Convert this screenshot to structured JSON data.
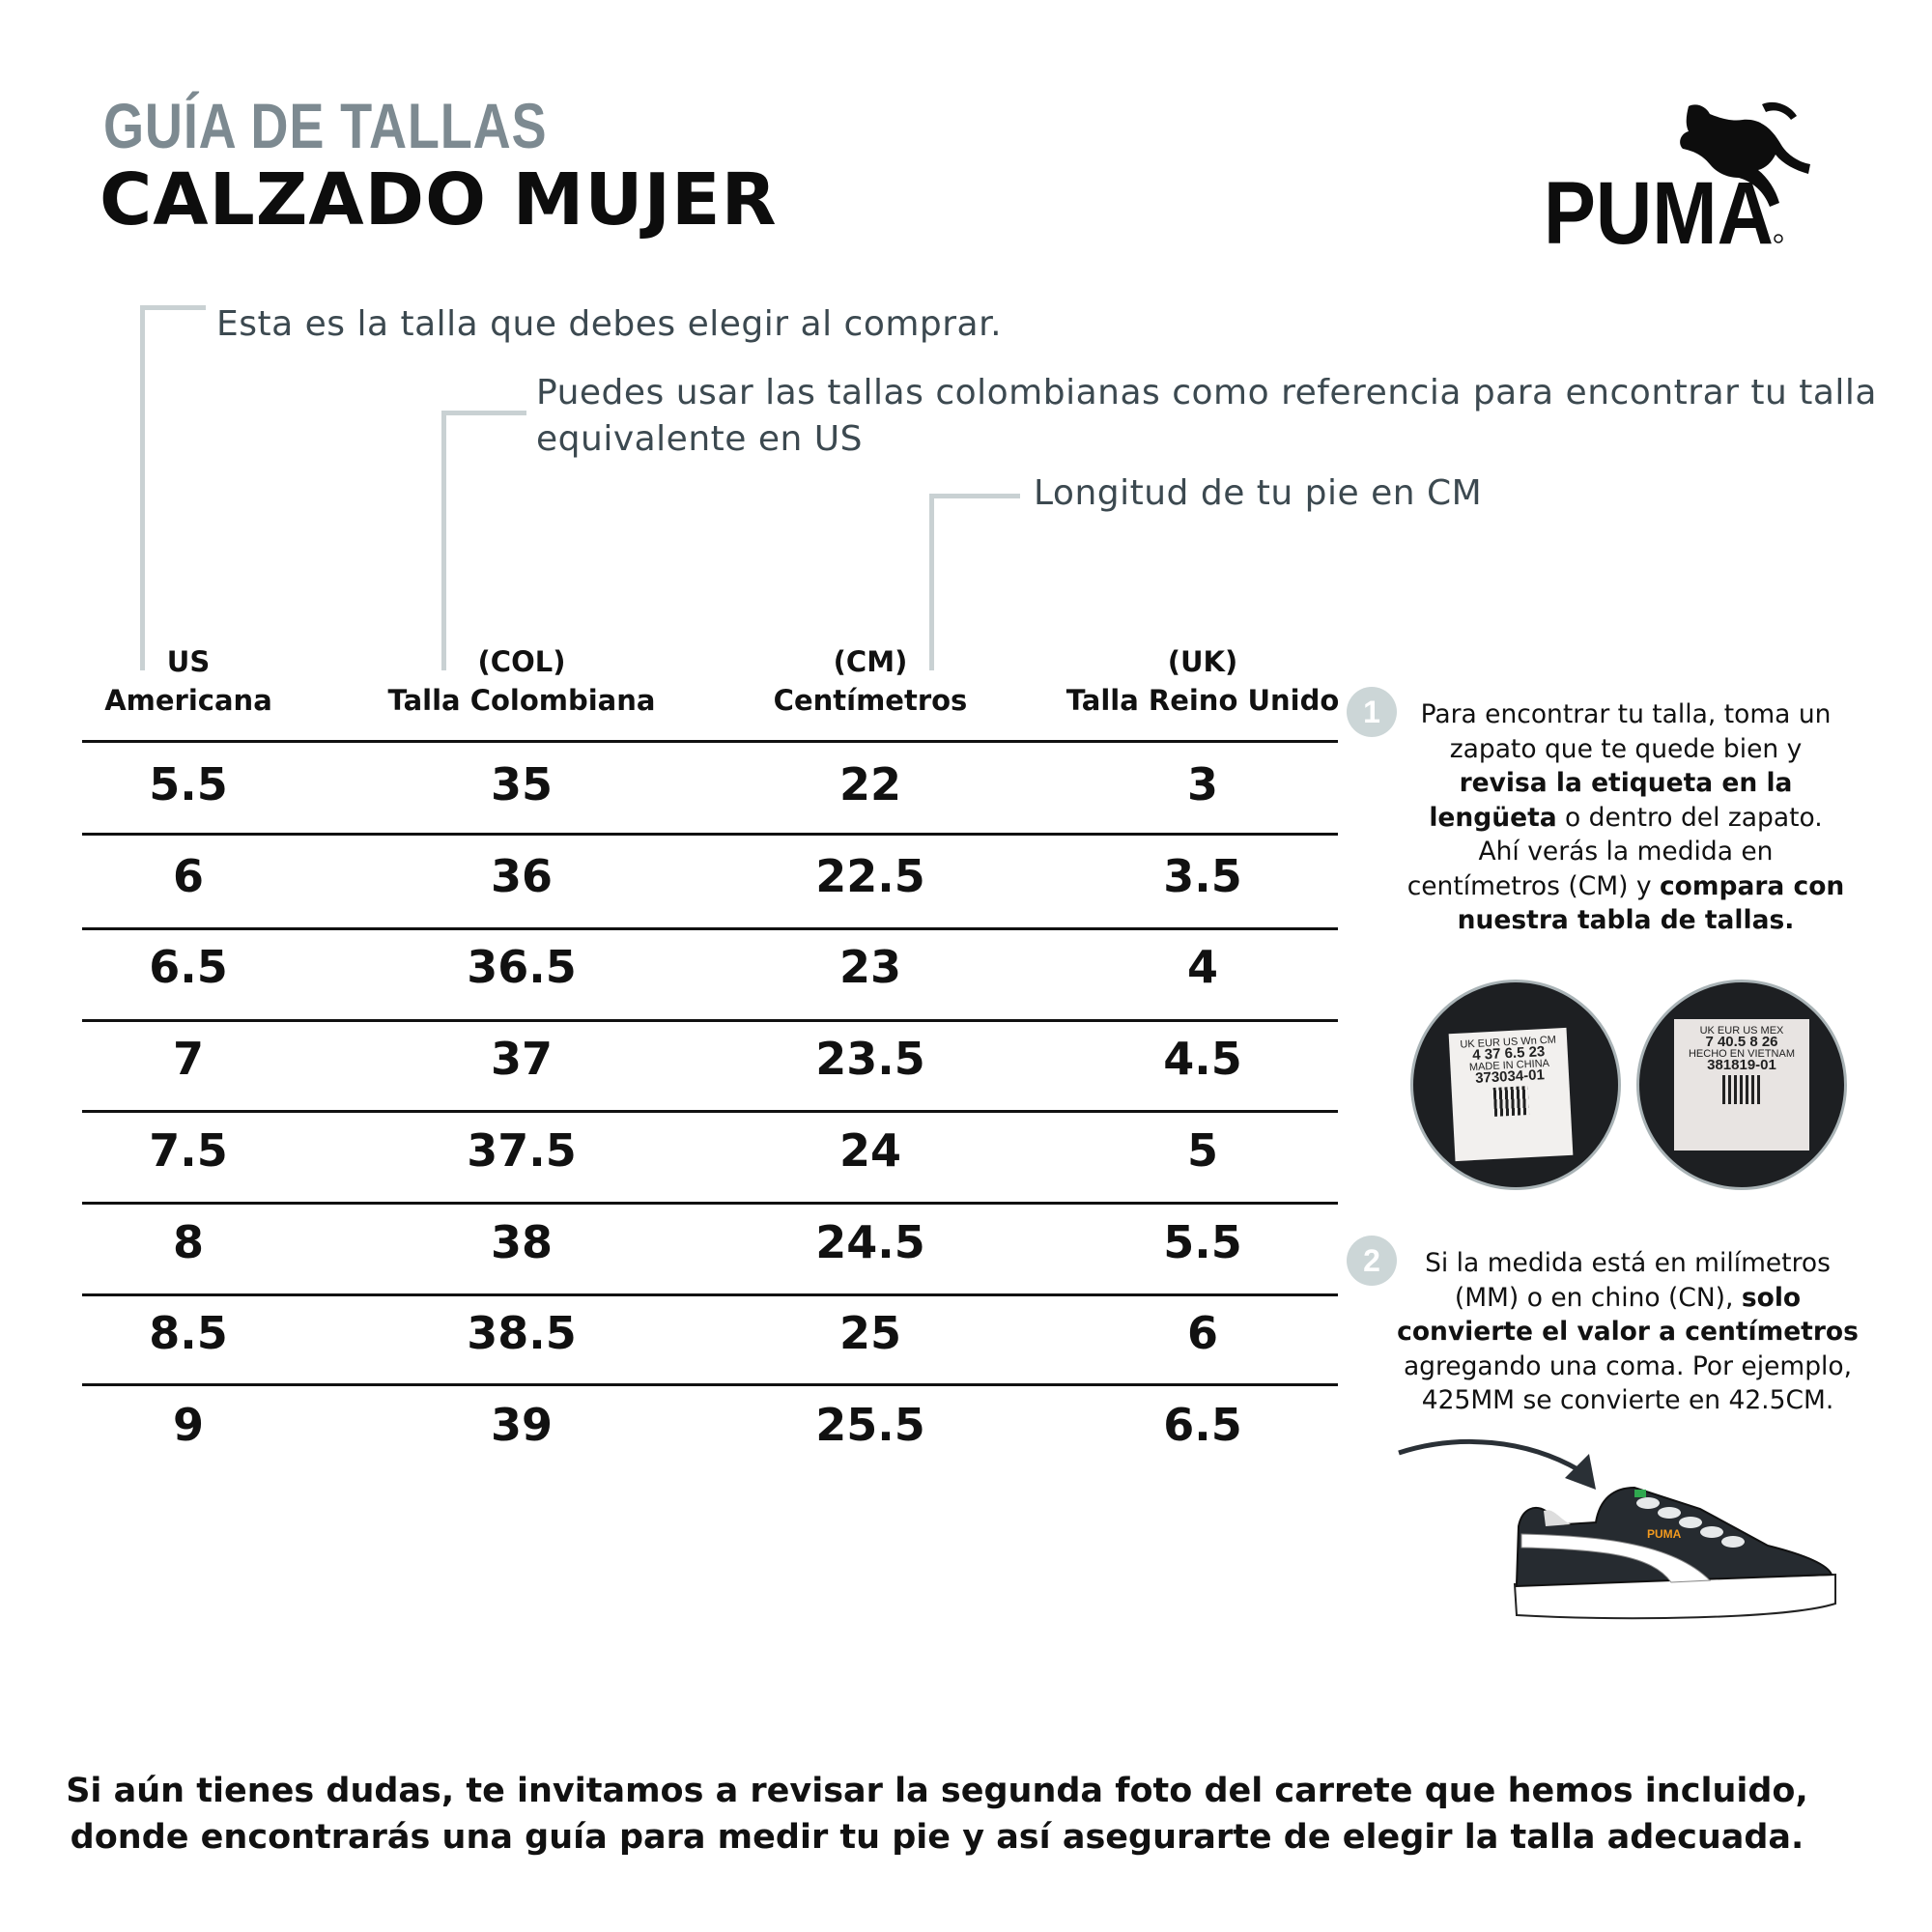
{
  "header": {
    "kicker": "GUÍA DE TALLAS",
    "title": "CALZADO MUJER",
    "brand_logo": "PUMA"
  },
  "notes": {
    "buy_size": "Esta es la talla que debes elegir al comprar.",
    "colombian_ref_line1": "Puedes usar las tallas colombianas como referencia para encontrar tu talla",
    "colombian_ref_line2": "equivalente en US",
    "foot_length": "Longitud de tu pie en CM"
  },
  "table": {
    "columns": [
      {
        "code": "US",
        "label": "Americana"
      },
      {
        "code": "(COL)",
        "label": "Talla Colombiana"
      },
      {
        "code": "(CM)",
        "label": "Centímetros"
      },
      {
        "code": "(UK)",
        "label": "Talla Reino Unido"
      }
    ],
    "rows": [
      [
        "5.5",
        "35",
        "22",
        "3"
      ],
      [
        "6",
        "36",
        "22.5",
        "3.5"
      ],
      [
        "6.5",
        "36.5",
        "23",
        "4"
      ],
      [
        "7",
        "37",
        "23.5",
        "4.5"
      ],
      [
        "7.5",
        "37.5",
        "24",
        "5"
      ],
      [
        "8",
        "38",
        "24.5",
        "5.5"
      ],
      [
        "8.5",
        "38.5",
        "25",
        "6"
      ],
      [
        "9",
        "39",
        "25.5",
        "6.5"
      ]
    ]
  },
  "steps": [
    {
      "number": "1",
      "t1": "Para encontrar tu talla, toma un zapato que te quede bien y ",
      "b1": "revisa la etiqueta en la lengüeta",
      "t2": " o dentro del zapato. Ahí verás la medida en centímetros (CM) y ",
      "b2": "compara con nuestra tabla de tallas.",
      "t3": ""
    },
    {
      "number": "2",
      "t1": "Si la medida está en milímetros (MM) o en chino (CN), ",
      "b1": "solo convierte el valor a centímetros",
      "t2": " agregando una coma. Por ejemplo, 425MM se convierte en 42.5CM.",
      "b2": "",
      "t3": ""
    }
  ],
  "label_photos": [
    {
      "heads": "UK  EUR  US Wn  CM",
      "values": "4  37  6.5  23",
      "origin": "MADE IN CHINA",
      "article": "373034-01"
    },
    {
      "heads": "UK  EUR  US  MEX",
      "values": "7  40.5  8  26",
      "origin": "HECHO EN VIETNAM",
      "article": "381819-01"
    }
  ],
  "footer": {
    "line1": "Si aún tienes dudas, te invitamos a revisar la segunda foto del carrete que hemos incluido,",
    "line2": "donde encontrarás una guía para medir tu pie y así asegurarte de elegir la talla adecuada."
  },
  "colors": {
    "kicker_grey": "#7d8a91",
    "bracket_grey": "#c9d1d3",
    "step_badge": "#ccd6d7",
    "shoe_body": "#262b30",
    "shoe_logo": "#f39a1e"
  }
}
